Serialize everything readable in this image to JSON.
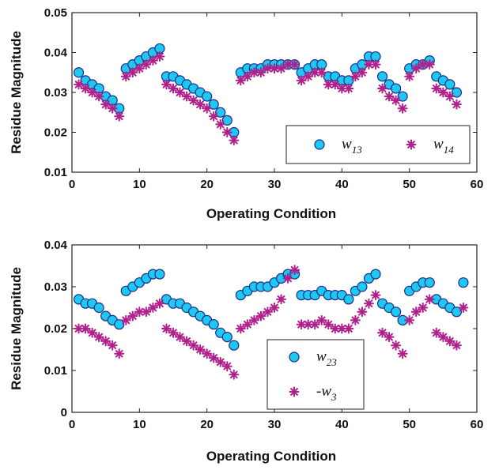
{
  "colors": {
    "circle_fill": "#1ec8f0",
    "circle_stroke": "#1a2a8c",
    "star": "#b0208c"
  },
  "chart_data": [
    {
      "type": "scatter",
      "xlabel": "Operating Condition",
      "ylabel": "Residue Magnitude",
      "xlim": [
        0,
        60
      ],
      "ylim": [
        0.01,
        0.05
      ],
      "xticks": [
        0,
        10,
        20,
        30,
        40,
        50,
        60
      ],
      "yticks": [
        0.01,
        0.02,
        0.03,
        0.04,
        0.05
      ],
      "xtick_labels": [
        "0",
        "10",
        "20",
        "30",
        "40",
        "50",
        "60"
      ],
      "ytick_labels": [
        "0.01",
        "0.02",
        "0.03",
        "0.04",
        "0.05"
      ],
      "grid": false,
      "legend_position": "bottom-right",
      "legend_layout": "horizontal",
      "series": [
        {
          "name": "w13",
          "label_base": "w",
          "label_sub": "13",
          "marker": "circle",
          "x": [
            1,
            2,
            3,
            4,
            5,
            6,
            7,
            8,
            9,
            10,
            11,
            12,
            13,
            14,
            15,
            16,
            17,
            18,
            19,
            20,
            21,
            22,
            23,
            24,
            25,
            26,
            27,
            28,
            29,
            30,
            31,
            32,
            33,
            34,
            35,
            36,
            37,
            38,
            39,
            40,
            41,
            42,
            43,
            44,
            45,
            46,
            47,
            48,
            49,
            50,
            51,
            52,
            53,
            54,
            55,
            56,
            57
          ],
          "y": [
            0.035,
            0.033,
            0.032,
            0.031,
            0.029,
            0.028,
            0.026,
            0.036,
            0.037,
            0.038,
            0.039,
            0.04,
            0.041,
            0.034,
            0.034,
            0.033,
            0.032,
            0.031,
            0.03,
            0.029,
            0.027,
            0.025,
            0.023,
            0.02,
            0.035,
            0.036,
            0.036,
            0.036,
            0.037,
            0.037,
            0.037,
            0.037,
            0.037,
            0.035,
            0.036,
            0.037,
            0.037,
            0.034,
            0.034,
            0.033,
            0.033,
            0.036,
            0.037,
            0.039,
            0.039,
            0.034,
            0.032,
            0.031,
            0.029,
            0.036,
            0.037,
            0.037,
            0.038,
            0.034,
            0.033,
            0.032,
            0.03
          ]
        },
        {
          "name": "w14",
          "label_base": "w",
          "label_sub": "14",
          "marker": "star",
          "x": [
            1,
            2,
            3,
            4,
            5,
            6,
            7,
            8,
            9,
            10,
            11,
            12,
            13,
            14,
            15,
            16,
            17,
            18,
            19,
            20,
            21,
            22,
            23,
            24,
            25,
            26,
            27,
            28,
            29,
            30,
            31,
            32,
            33,
            34,
            35,
            36,
            37,
            38,
            39,
            40,
            41,
            42,
            43,
            44,
            45,
            46,
            47,
            48,
            49,
            50,
            51,
            52,
            53,
            54,
            55,
            56,
            57
          ],
          "y": [
            0.032,
            0.031,
            0.03,
            0.029,
            0.027,
            0.026,
            0.024,
            0.034,
            0.035,
            0.036,
            0.037,
            0.038,
            0.039,
            0.032,
            0.031,
            0.03,
            0.029,
            0.028,
            0.027,
            0.026,
            0.024,
            0.022,
            0.02,
            0.018,
            0.033,
            0.034,
            0.035,
            0.035,
            0.036,
            0.036,
            0.036,
            0.037,
            0.037,
            0.033,
            0.034,
            0.035,
            0.035,
            0.032,
            0.032,
            0.031,
            0.031,
            0.034,
            0.035,
            0.037,
            0.037,
            0.031,
            0.029,
            0.028,
            0.026,
            0.034,
            0.036,
            0.037,
            0.037,
            0.031,
            0.03,
            0.029,
            0.027
          ]
        }
      ]
    },
    {
      "type": "scatter",
      "xlabel": "Operating Condition",
      "ylabel": "Residue Magnitude",
      "xlim": [
        0,
        60
      ],
      "ylim": [
        0,
        0.04
      ],
      "xticks": [
        0,
        10,
        20,
        30,
        40,
        50,
        60
      ],
      "yticks": [
        0,
        0.01,
        0.02,
        0.03,
        0.04
      ],
      "xtick_labels": [
        "0",
        "10",
        "20",
        "30",
        "40",
        "50",
        "60"
      ],
      "ytick_labels": [
        "0",
        "0.01",
        "0.02",
        "0.03",
        "0.04"
      ],
      "grid": false,
      "legend_position": "bottom-center",
      "legend_layout": "vertical",
      "series": [
        {
          "name": "w23",
          "label_base": "w",
          "label_sub": "23",
          "marker": "circle",
          "x": [
            1,
            2,
            3,
            4,
            5,
            6,
            7,
            8,
            9,
            10,
            11,
            12,
            13,
            14,
            15,
            16,
            17,
            18,
            19,
            20,
            21,
            22,
            23,
            24,
            25,
            26,
            27,
            28,
            29,
            30,
            31,
            32,
            33,
            34,
            35,
            36,
            37,
            38,
            39,
            40,
            41,
            42,
            43,
            44,
            45,
            46,
            47,
            48,
            49,
            50,
            51,
            52,
            53,
            54,
            55,
            56,
            57,
            58
          ],
          "y": [
            0.027,
            0.026,
            0.026,
            0.025,
            0.023,
            0.022,
            0.021,
            0.029,
            0.03,
            0.031,
            0.032,
            0.033,
            0.033,
            0.027,
            0.026,
            0.026,
            0.025,
            0.024,
            0.023,
            0.022,
            0.021,
            0.019,
            0.018,
            0.016,
            0.028,
            0.029,
            0.03,
            0.03,
            0.03,
            0.031,
            0.032,
            0.033,
            0.033,
            0.028,
            0.028,
            0.028,
            0.029,
            0.028,
            0.028,
            0.028,
            0.027,
            0.029,
            0.03,
            0.032,
            0.033,
            0.026,
            0.025,
            0.024,
            0.022,
            0.029,
            0.03,
            0.031,
            0.031,
            0.027,
            0.026,
            0.025,
            0.024,
            0.031
          ]
        },
        {
          "name": "-w3",
          "label_base": "-w",
          "label_sub": "3",
          "marker": "star",
          "x": [
            1,
            2,
            3,
            4,
            5,
            6,
            7,
            8,
            9,
            10,
            11,
            12,
            13,
            14,
            15,
            16,
            17,
            18,
            19,
            20,
            21,
            22,
            23,
            24,
            25,
            26,
            27,
            28,
            29,
            30,
            31,
            32,
            33,
            34,
            35,
            36,
            37,
            38,
            39,
            40,
            41,
            42,
            43,
            44,
            45,
            46,
            47,
            48,
            49,
            50,
            51,
            52,
            53,
            54,
            55,
            56,
            57,
            58
          ],
          "y": [
            0.02,
            0.02,
            0.019,
            0.018,
            0.017,
            0.016,
            0.014,
            0.022,
            0.023,
            0.024,
            0.024,
            0.025,
            0.026,
            0.02,
            0.019,
            0.018,
            0.017,
            0.016,
            0.015,
            0.014,
            0.013,
            0.012,
            0.011,
            0.009,
            0.02,
            0.021,
            0.022,
            0.023,
            0.024,
            0.025,
            0.027,
            0.032,
            0.034,
            0.021,
            0.021,
            0.021,
            0.022,
            0.021,
            0.02,
            0.02,
            0.02,
            0.022,
            0.024,
            0.026,
            0.028,
            0.019,
            0.018,
            0.016,
            0.014,
            0.022,
            0.024,
            0.025,
            0.027,
            0.019,
            0.018,
            0.017,
            0.016,
            0.025
          ]
        }
      ]
    }
  ]
}
